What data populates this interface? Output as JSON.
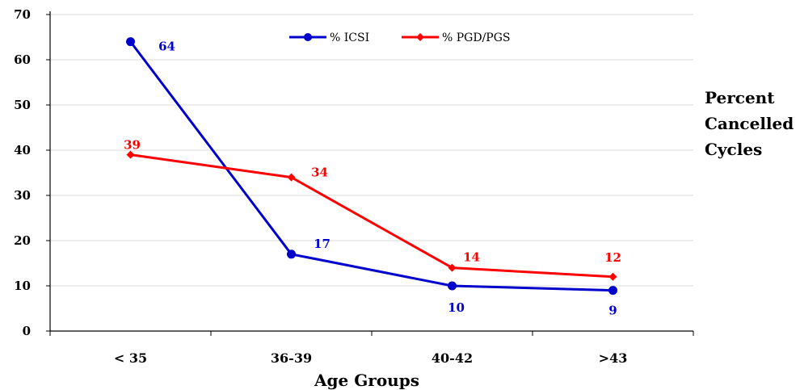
{
  "chart_data": {
    "type": "line",
    "categories": [
      "< 35",
      "36-39",
      "40-42",
      ">43"
    ],
    "series": [
      {
        "name": "% ICSI",
        "values": [
          64,
          17,
          10,
          9
        ],
        "color": "#0000cc",
        "marker": "circle"
      },
      {
        "name": "% PGD/PGS",
        "values": [
          39,
          34,
          14,
          12
        ],
        "color": "#ff0000",
        "marker": "diamond"
      }
    ],
    "xlabel": "Age Groups",
    "ylabel": [
      "Percent",
      "Cancelled",
      "Cycles"
    ],
    "ylim": [
      0,
      70
    ],
    "yticks": [
      0,
      10,
      20,
      30,
      40,
      50,
      60,
      70
    ],
    "grid": true,
    "legend_position": "top-center"
  }
}
